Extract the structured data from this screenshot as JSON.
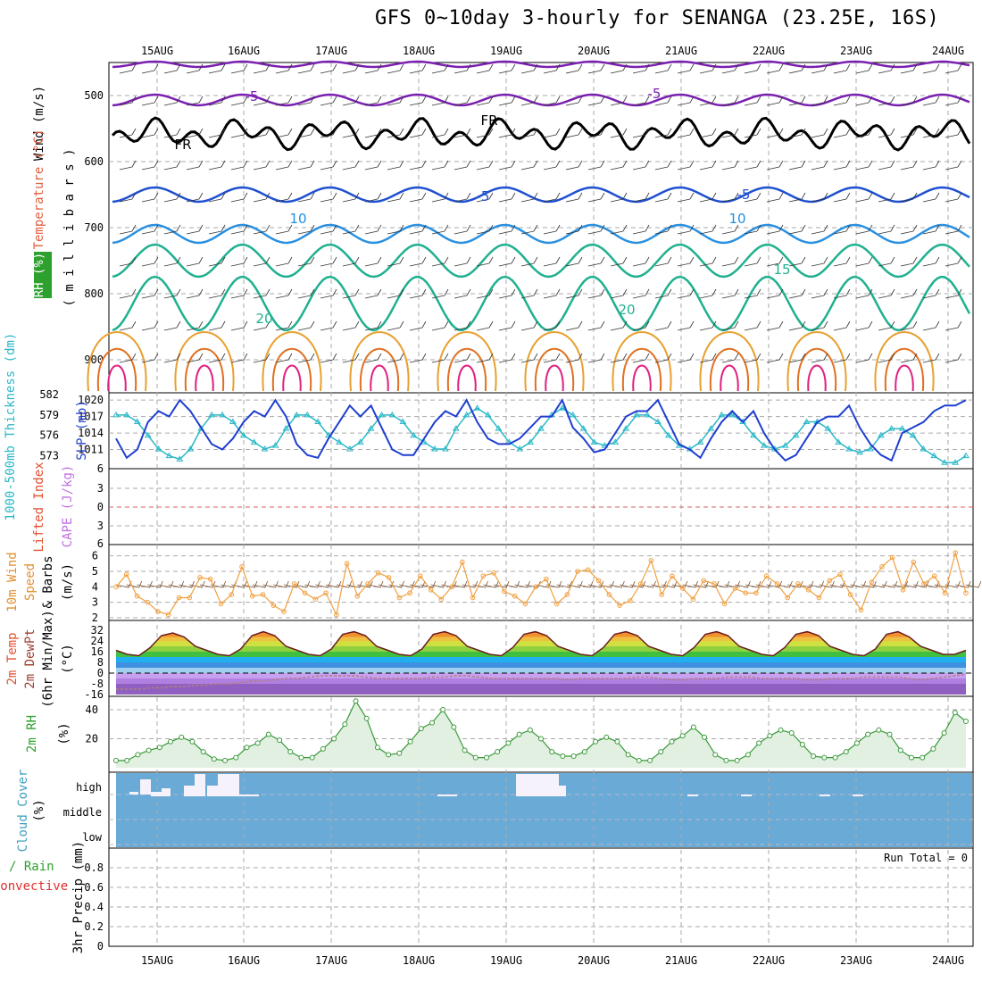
{
  "title": "GFS 0~10day 3-hourly for SENANGA (23.25E, 16S)",
  "dates": [
    "15AUG",
    "16AUG",
    "17AUG",
    "18AUG",
    "19AUG",
    "20AUG",
    "21AUG",
    "22AUG",
    "23AUG",
    "24AUG"
  ],
  "colors": {
    "grid": "#aaaaaa",
    "cloud_bg": "#6aaad6",
    "slp": "#1f3fd0",
    "thickness": "#2ab8c8",
    "wind": "#f0a040",
    "rh2m": "#3a9a3a"
  },
  "panels": {
    "upper": {
      "ylabel_parts": [
        "RH (%)",
        "Temperature (°C)",
        "Wind (m/s)"
      ],
      "ylabel2": "( m i l l i b a r s )",
      "y_ticks": [
        "500",
        "600",
        "700",
        "800",
        "900"
      ],
      "contour_labels": [
        "-5",
        "-5",
        "FR",
        "FR",
        "10",
        "-5",
        "-5",
        "10",
        "10",
        "15",
        "20",
        "20"
      ]
    },
    "slp": {
      "left_label": "1000-500mb Thickness (dm)",
      "right_label": "SLP (mb)",
      "left_ticks": [
        "582",
        "579",
        "576",
        "573"
      ],
      "right_ticks": [
        "1020",
        "1017",
        "1014",
        "1011"
      ]
    },
    "cape": {
      "left_label": "Lifted Index",
      "right_label": "CAPE (J/kg)",
      "ticks": [
        "6",
        "3",
        "0",
        "3",
        "6"
      ]
    },
    "wind10": {
      "label1": "10m Wind",
      "label2": "Speed",
      "label3": "& Barbs",
      "unit": "(m/s)",
      "ticks": [
        "6",
        "5",
        "4",
        "3",
        "2"
      ]
    },
    "temp": {
      "label1": "2m Temp",
      "label2": "2m DewPt",
      "label3": "(6hr Min/Max)",
      "unit": "(°C)",
      "ticks": [
        "32",
        "24",
        "16",
        "8",
        "0",
        "-8",
        "-16"
      ]
    },
    "rh": {
      "label": "2m RH",
      "unit": "(%)",
      "ticks": [
        "40",
        "20"
      ]
    },
    "cloud": {
      "label": "Cloud Cover",
      "unit": "(%)",
      "levels": [
        "high",
        "middle",
        "low"
      ]
    },
    "precip": {
      "label1": "Total / Rain",
      "label2": "Convective",
      "label3": "3hr Precip (mm)",
      "ticks": [
        "0.8",
        "0.6",
        "0.4",
        "0.2",
        "0"
      ],
      "run_total": "Run Total = 0"
    }
  },
  "chart_data": [
    {
      "type": "line",
      "title": "",
      "ylabel": "SLP (mb)",
      "ylim": [
        1008,
        1021
      ],
      "series": [
        {
          "name": "SLP",
          "values": [
            1013,
            1009.5,
            1011,
            1016,
            1018,
            1017,
            1020,
            1018,
            1015,
            1012,
            1011,
            1013,
            1016,
            1018,
            1017,
            1020,
            1017,
            1012,
            1010,
            1009.5,
            1013,
            1016,
            1019,
            1017,
            1019,
            1015,
            1011,
            1010,
            1010,
            1013,
            1016,
            1018,
            1017,
            1020,
            1016,
            1013,
            1012,
            1012,
            1013,
            1015,
            1017,
            1017,
            1020,
            1015,
            1013,
            1010.5,
            1011,
            1014,
            1017,
            1018,
            1018,
            1020,
            1016,
            1012,
            1011,
            1009.5,
            1013,
            1016,
            1018,
            1016,
            1018,
            1014,
            1011,
            1009,
            1010,
            1013,
            1016,
            1017,
            1017,
            1019,
            1015,
            1012,
            1010,
            1009,
            1014,
            1015,
            1016,
            1018,
            1019,
            1019,
            1020
          ]
        }
      ]
    },
    {
      "type": "line",
      "title": "",
      "ylabel": "1000-500mb Thickness (dm)",
      "ylim": [
        571.5,
        582
      ],
      "series": [
        {
          "name": "Thickness",
          "values": [
            579,
            579,
            578,
            576,
            574,
            573,
            572.5,
            574,
            577,
            579,
            579,
            578,
            576,
            575,
            574,
            574.5,
            577,
            579,
            579,
            578,
            576,
            575,
            574,
            575,
            577,
            579,
            579,
            578,
            576,
            575,
            574,
            574,
            577,
            579,
            580,
            579,
            577,
            575,
            574,
            575,
            577,
            579,
            580,
            579,
            577,
            575,
            574.5,
            575,
            577,
            579,
            579,
            578,
            576,
            574.5,
            574,
            575,
            577,
            579,
            579,
            578,
            576,
            574.5,
            574,
            574.5,
            576,
            578,
            578,
            577,
            575,
            574,
            573.5,
            574,
            576,
            577,
            577,
            576,
            574,
            573,
            572,
            572,
            573
          ]
        }
      ]
    },
    {
      "type": "line",
      "title": "",
      "ylabel": "Speed (m/s)",
      "ylim": [
        2,
        6.5
      ],
      "series": [
        {
          "name": "Wind speed",
          "values": [
            4,
            4.8,
            3.4,
            3,
            2.4,
            2.2,
            3.3,
            3.3,
            4.6,
            4.5,
            2.9,
            3.5,
            5.3,
            3.4,
            3.5,
            2.8,
            2.4,
            4.2,
            3.6,
            3.2,
            3.6,
            2.2,
            5.5,
            3.4,
            4.2,
            4.9,
            4.6,
            3.3,
            3.6,
            4.7,
            3.8,
            3.2,
            4,
            5.6,
            3.3,
            4.7,
            4.9,
            3.7,
            3.4,
            2.9,
            4,
            4.5,
            2.9,
            3.5,
            5,
            5.1,
            4.4,
            3.5,
            2.8,
            3.1,
            4.2,
            5.7,
            3.5,
            4.7,
            3.9,
            3.2,
            4.4,
            4.2,
            2.9,
            3.9,
            3.6,
            3.6,
            4.7,
            4.2,
            3.3,
            4.2,
            3.8,
            3.3,
            4.4,
            4.8,
            3.5,
            2.5,
            4.3,
            5.3,
            5.9,
            3.8,
            5.6,
            4.2,
            4.7,
            3.6,
            6.2,
            3.6
          ]
        }
      ]
    },
    {
      "type": "area",
      "title": "",
      "ylabel": "2m RH (%)",
      "ylim": [
        0,
        48
      ],
      "series": [
        {
          "name": "2m RH",
          "values": [
            5,
            5,
            9,
            12,
            14,
            18,
            21,
            18,
            11,
            6,
            5,
            7,
            14,
            17,
            23,
            19,
            11,
            7,
            7,
            13,
            20,
            30,
            46,
            34,
            14,
            9,
            10,
            18,
            27,
            31,
            40,
            28,
            12,
            7,
            7,
            11,
            17,
            23,
            26,
            20,
            11,
            8,
            8,
            11,
            18,
            21,
            18,
            9,
            5,
            5,
            11,
            18,
            22,
            28,
            21,
            9,
            5,
            5,
            9,
            17,
            22,
            26,
            24,
            16,
            8,
            7,
            7,
            11,
            17,
            23,
            26,
            23,
            12,
            7,
            7,
            13,
            24,
            38,
            32
          ]
        }
      ]
    },
    {
      "type": "area",
      "title": "",
      "ylabel": "2m Temp (°C)",
      "ylim": [
        -16,
        36
      ],
      "series": [
        {
          "name": "2m Temp",
          "values": [
            17,
            14,
            13,
            19,
            28,
            30,
            27,
            20,
            17,
            14,
            13,
            18,
            28,
            31,
            28,
            20,
            17,
            14,
            13,
            18,
            29,
            31,
            28,
            20,
            17,
            14,
            13,
            18,
            29,
            31,
            28,
            20,
            17,
            14,
            13,
            19,
            29,
            31,
            28,
            20,
            17,
            14,
            13,
            19,
            29,
            31,
            28,
            20,
            17,
            14,
            13,
            19,
            29,
            31,
            28,
            20,
            17,
            14,
            13,
            19,
            29,
            31,
            28,
            20,
            17,
            14,
            13,
            18,
            29,
            31,
            27,
            20,
            17,
            14,
            14,
            17
          ]
        },
        {
          "name": "2m DewPt",
          "values": [
            -12,
            -12,
            -12,
            -11,
            -11,
            -10,
            -10,
            -9,
            -9,
            -8,
            -8,
            -7,
            -6,
            -6,
            -5,
            -4,
            -4,
            -3,
            -2,
            -2,
            -2,
            -2,
            -3,
            -4,
            -4,
            -4,
            -4,
            -4,
            -3,
            -3,
            -2,
            -2,
            -3,
            -4,
            -4,
            -4,
            -4,
            -4,
            -4,
            -4,
            -5,
            -4,
            -4,
            -4,
            -4,
            -4,
            -3,
            -3,
            -4,
            -5,
            -5,
            -4,
            -4,
            -4,
            -3,
            -3,
            -3,
            -4,
            -4,
            -4,
            -4,
            -5,
            -5,
            -4,
            -4,
            -4,
            -3,
            -3,
            -3,
            -3,
            -4,
            -5,
            -4,
            -3,
            -2,
            -1
          ]
        }
      ]
    },
    {
      "type": "bar",
      "title": "",
      "ylabel": "3hr Precip (mm)",
      "ylim": [
        0,
        1
      ],
      "series": [
        {
          "name": "Total / Rain",
          "values": [
            0,
            0,
            0,
            0,
            0,
            0,
            0,
            0,
            0,
            0,
            0,
            0,
            0,
            0,
            0,
            0,
            0,
            0,
            0,
            0
          ]
        }
      ]
    }
  ]
}
